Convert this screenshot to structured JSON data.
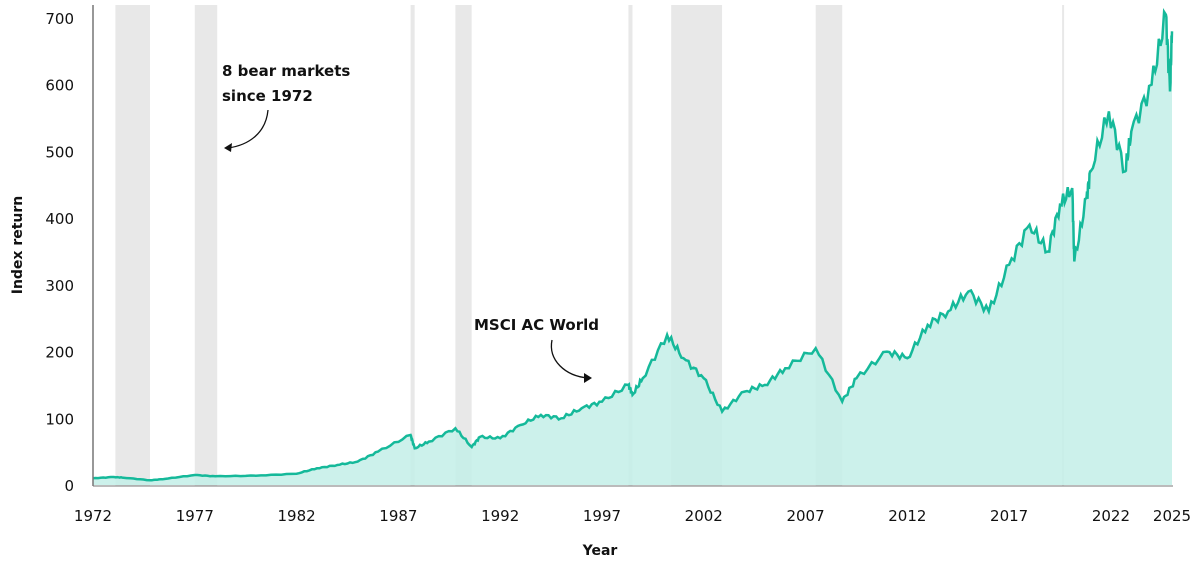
{
  "chart_data": {
    "type": "area",
    "xlabel": "Year",
    "ylabel": "Index return",
    "xlim": [
      1972,
      2025
    ],
    "ylim": [
      0,
      700
    ],
    "x_ticks": [
      1972,
      1977,
      1982,
      1987,
      1992,
      1997,
      2002,
      2007,
      2012,
      2017,
      2022,
      2025
    ],
    "y_ticks": [
      0,
      100,
      200,
      300,
      400,
      500,
      600,
      700
    ],
    "grid": false,
    "series": [
      {
        "name": "MSCI AC World",
        "color": "#15b99a",
        "fill": "#c3eee7",
        "x": [
          1972,
          1973,
          1973.5,
          1974.8,
          1975.5,
          1977,
          1978,
          1980,
          1982,
          1983,
          1984,
          1985,
          1986,
          1987.6,
          1987.8,
          1988.5,
          1989.8,
          1990.6,
          1991,
          1992,
          1993,
          1994,
          1995,
          1996,
          1997,
          1998.3,
          1998.5,
          1999,
          2000.2,
          2001,
          2002,
          2002.9,
          2004,
          2005,
          2006,
          2007.5,
          2008.8,
          2009.5,
          2011,
          2012,
          2013,
          2014,
          2015,
          2016,
          2017,
          2018,
          2018.9,
          2019.5,
          2020.1,
          2020.2,
          2020.8,
          2021,
          2021.9,
          2022.7,
          2023,
          2024,
          2024.7,
          2024.9,
          2025
        ],
        "values": [
          10,
          12,
          11,
          7,
          9,
          15,
          13,
          14,
          17,
          25,
          30,
          35,
          50,
          75,
          55,
          65,
          85,
          57,
          72,
          70,
          90,
          105,
          100,
          115,
          125,
          150,
          135,
          160,
          225,
          190,
          160,
          110,
          140,
          150,
          175,
          205,
          125,
          160,
          200,
          190,
          240,
          260,
          290,
          260,
          330,
          390,
          350,
          420,
          445,
          335,
          430,
          470,
          560,
          470,
          530,
          600,
          705,
          590,
          680
        ]
      }
    ],
    "bear_markets": [
      [
        1973.1,
        1974.8
      ],
      [
        1977.0,
        1978.1
      ],
      [
        1987.6,
        1987.8
      ],
      [
        1989.8,
        1990.6
      ],
      [
        1998.3,
        1998.5
      ],
      [
        2000.4,
        2002.9
      ],
      [
        2007.5,
        2008.8
      ],
      [
        2019.6,
        2019.7
      ]
    ],
    "shade_color": "#e8e8e8",
    "annotations": {
      "bear_line1": "8 bear markets",
      "bear_line2": "since 1972",
      "series_label": "MSCI AC World"
    }
  }
}
